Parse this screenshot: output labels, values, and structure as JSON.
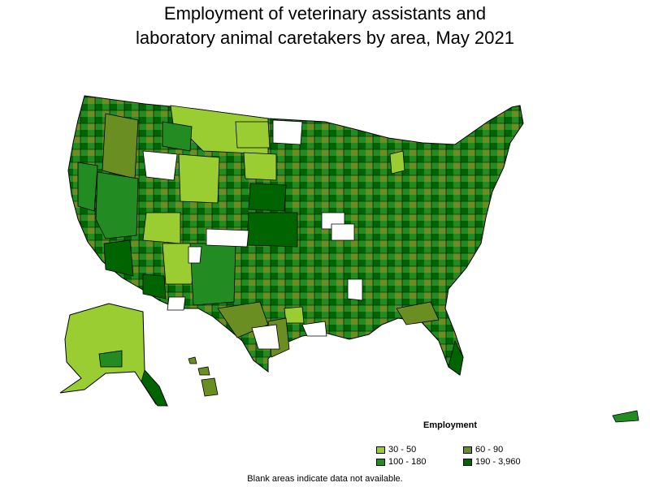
{
  "title": {
    "line1": "Employment of veterinary assistants and",
    "line2": "laboratory animal caretakers by area, May 2021"
  },
  "legend": {
    "title": "Employment",
    "items": [
      {
        "label": "30 - 50",
        "color": "#9acd32"
      },
      {
        "label": "60 - 90",
        "color": "#6b8e23"
      },
      {
        "label": "100 - 180",
        "color": "#228b22"
      },
      {
        "label": "190 - 3,960",
        "color": "#006400"
      }
    ]
  },
  "footnote": "Blank areas indicate data not available.",
  "colors": {
    "no_data": "#ffffff",
    "border": "#000000"
  }
}
